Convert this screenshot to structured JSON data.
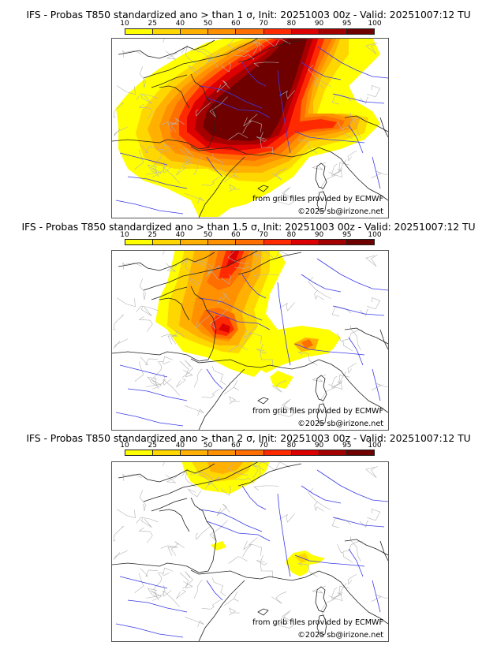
{
  "panels": [
    {
      "title": "IFS - Probas T850  standardized ano > than 1 σ, Init: 20251003 00z - Valid: 20251007:12 TU",
      "threshold_sigma": 1,
      "credit_source": "from grib files provided by ECMWF",
      "credit_copyright": "©2025 sb@irizone.net"
    },
    {
      "title": "IFS - Probas T850  standardized ano > than 1.5 σ, Init: 20251003 00z - Valid: 20251007:12 TU",
      "threshold_sigma": 1.5,
      "credit_source": "from grib files provided by ECMWF",
      "credit_copyright": "©2025 sb@irizone.net"
    },
    {
      "title": "IFS - Probas T850  standardized ano > than 2 σ, Init: 20251003 00z - Valid: 20251007:12 TU",
      "threshold_sigma": 2,
      "credit_source": "from grib files provided by ECMWF",
      "credit_copyright": "©2025 sb@irizone.net"
    }
  ],
  "colorbar": {
    "ticks": [
      "10",
      "25",
      "40",
      "50",
      "60",
      "70",
      "80",
      "90",
      "95",
      "100"
    ],
    "colors": [
      "#ffff00",
      "#ffd700",
      "#ffb000",
      "#ff9000",
      "#ff6e00",
      "#ff2a00",
      "#dd0000",
      "#a50000",
      "#6e0000"
    ]
  },
  "map_colors": {
    "coast": "#222222",
    "rivers": "#3a3ae8",
    "admin": "#b4b4b4"
  }
}
